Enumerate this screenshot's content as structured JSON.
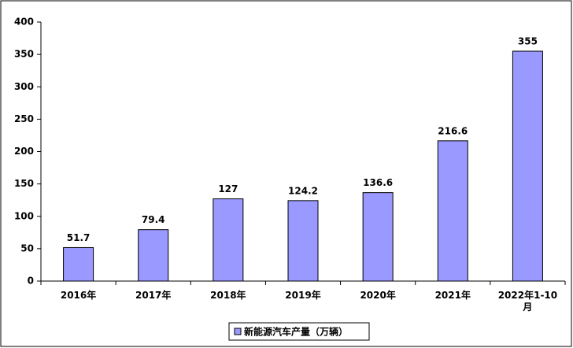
{
  "chart_data": {
    "type": "bar",
    "categories": [
      "2016年",
      "2017年",
      "2018年",
      "2019年",
      "2020年",
      "2021年",
      "2022年1-10月"
    ],
    "series": [
      {
        "name": "新能源汽车产量（万辆）",
        "color": "#9999ff",
        "values": [
          51.7,
          79.4,
          127,
          124.2,
          136.6,
          216.6,
          355
        ]
      }
    ],
    "ylim": [
      0,
      400
    ],
    "yticks": [
      0,
      50,
      100,
      150,
      200,
      250,
      300,
      350,
      400
    ],
    "grid": false,
    "legend": "bottom"
  }
}
